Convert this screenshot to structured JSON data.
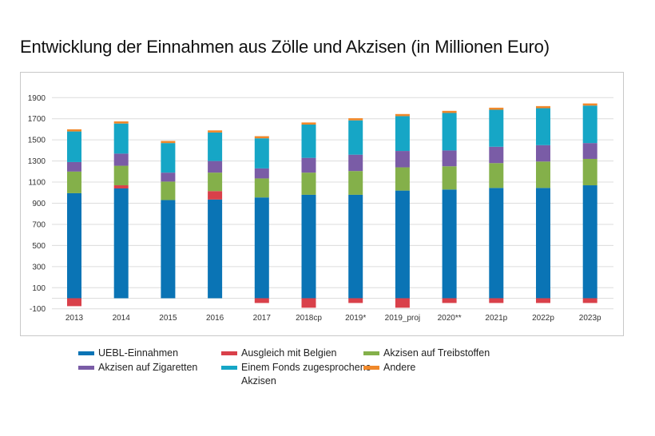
{
  "chart_data": {
    "type": "bar",
    "stacked": true,
    "title": "Entwicklung der Einnahmen aus Zölle und Akzisen (in Millionen Euro)",
    "xlabel": "",
    "ylabel": "",
    "ylim": [
      -100,
      1900
    ],
    "yticks": [
      -100,
      100,
      300,
      500,
      700,
      900,
      1100,
      1300,
      1500,
      1700,
      1900
    ],
    "grid": true,
    "legend_position": "bottom",
    "categories": [
      "2013",
      "2014",
      "2015",
      "2016",
      "2017",
      "2018cp",
      "2019*",
      "2019_proj",
      "2020**",
      "2021p",
      "2022p",
      "2023p"
    ],
    "series": [
      {
        "name": "UEBL-Einnahmen",
        "color": "#0a74b5",
        "values": [
          995,
          1040,
          930,
          935,
          955,
          980,
          980,
          1020,
          1030,
          1045,
          1045,
          1070
        ]
      },
      {
        "name": "Ausgleich mit Belgien",
        "color": "#d9404a",
        "values": [
          -75,
          30,
          0,
          80,
          -45,
          -90,
          -45,
          -90,
          -45,
          -45,
          -45,
          -45
        ]
      },
      {
        "name": "Akzisen auf Treibstoffen",
        "color": "#84b04a",
        "values": [
          205,
          185,
          175,
          175,
          180,
          210,
          225,
          220,
          220,
          235,
          250,
          250
        ]
      },
      {
        "name": "Akzisen auf Zigaretten",
        "color": "#7a5ca6",
        "values": [
          90,
          115,
          85,
          110,
          95,
          140,
          155,
          155,
          150,
          155,
          155,
          150
        ]
      },
      {
        "name": "Einem Fonds zugesprochene Akzisen",
        "color": "#16a6c6",
        "values": [
          290,
          285,
          280,
          270,
          285,
          315,
          325,
          330,
          355,
          350,
          350,
          355
        ]
      },
      {
        "name": "Andere",
        "color": "#f0882a",
        "values": [
          20,
          20,
          20,
          20,
          20,
          20,
          20,
          20,
          20,
          20,
          20,
          20
        ]
      }
    ]
  }
}
